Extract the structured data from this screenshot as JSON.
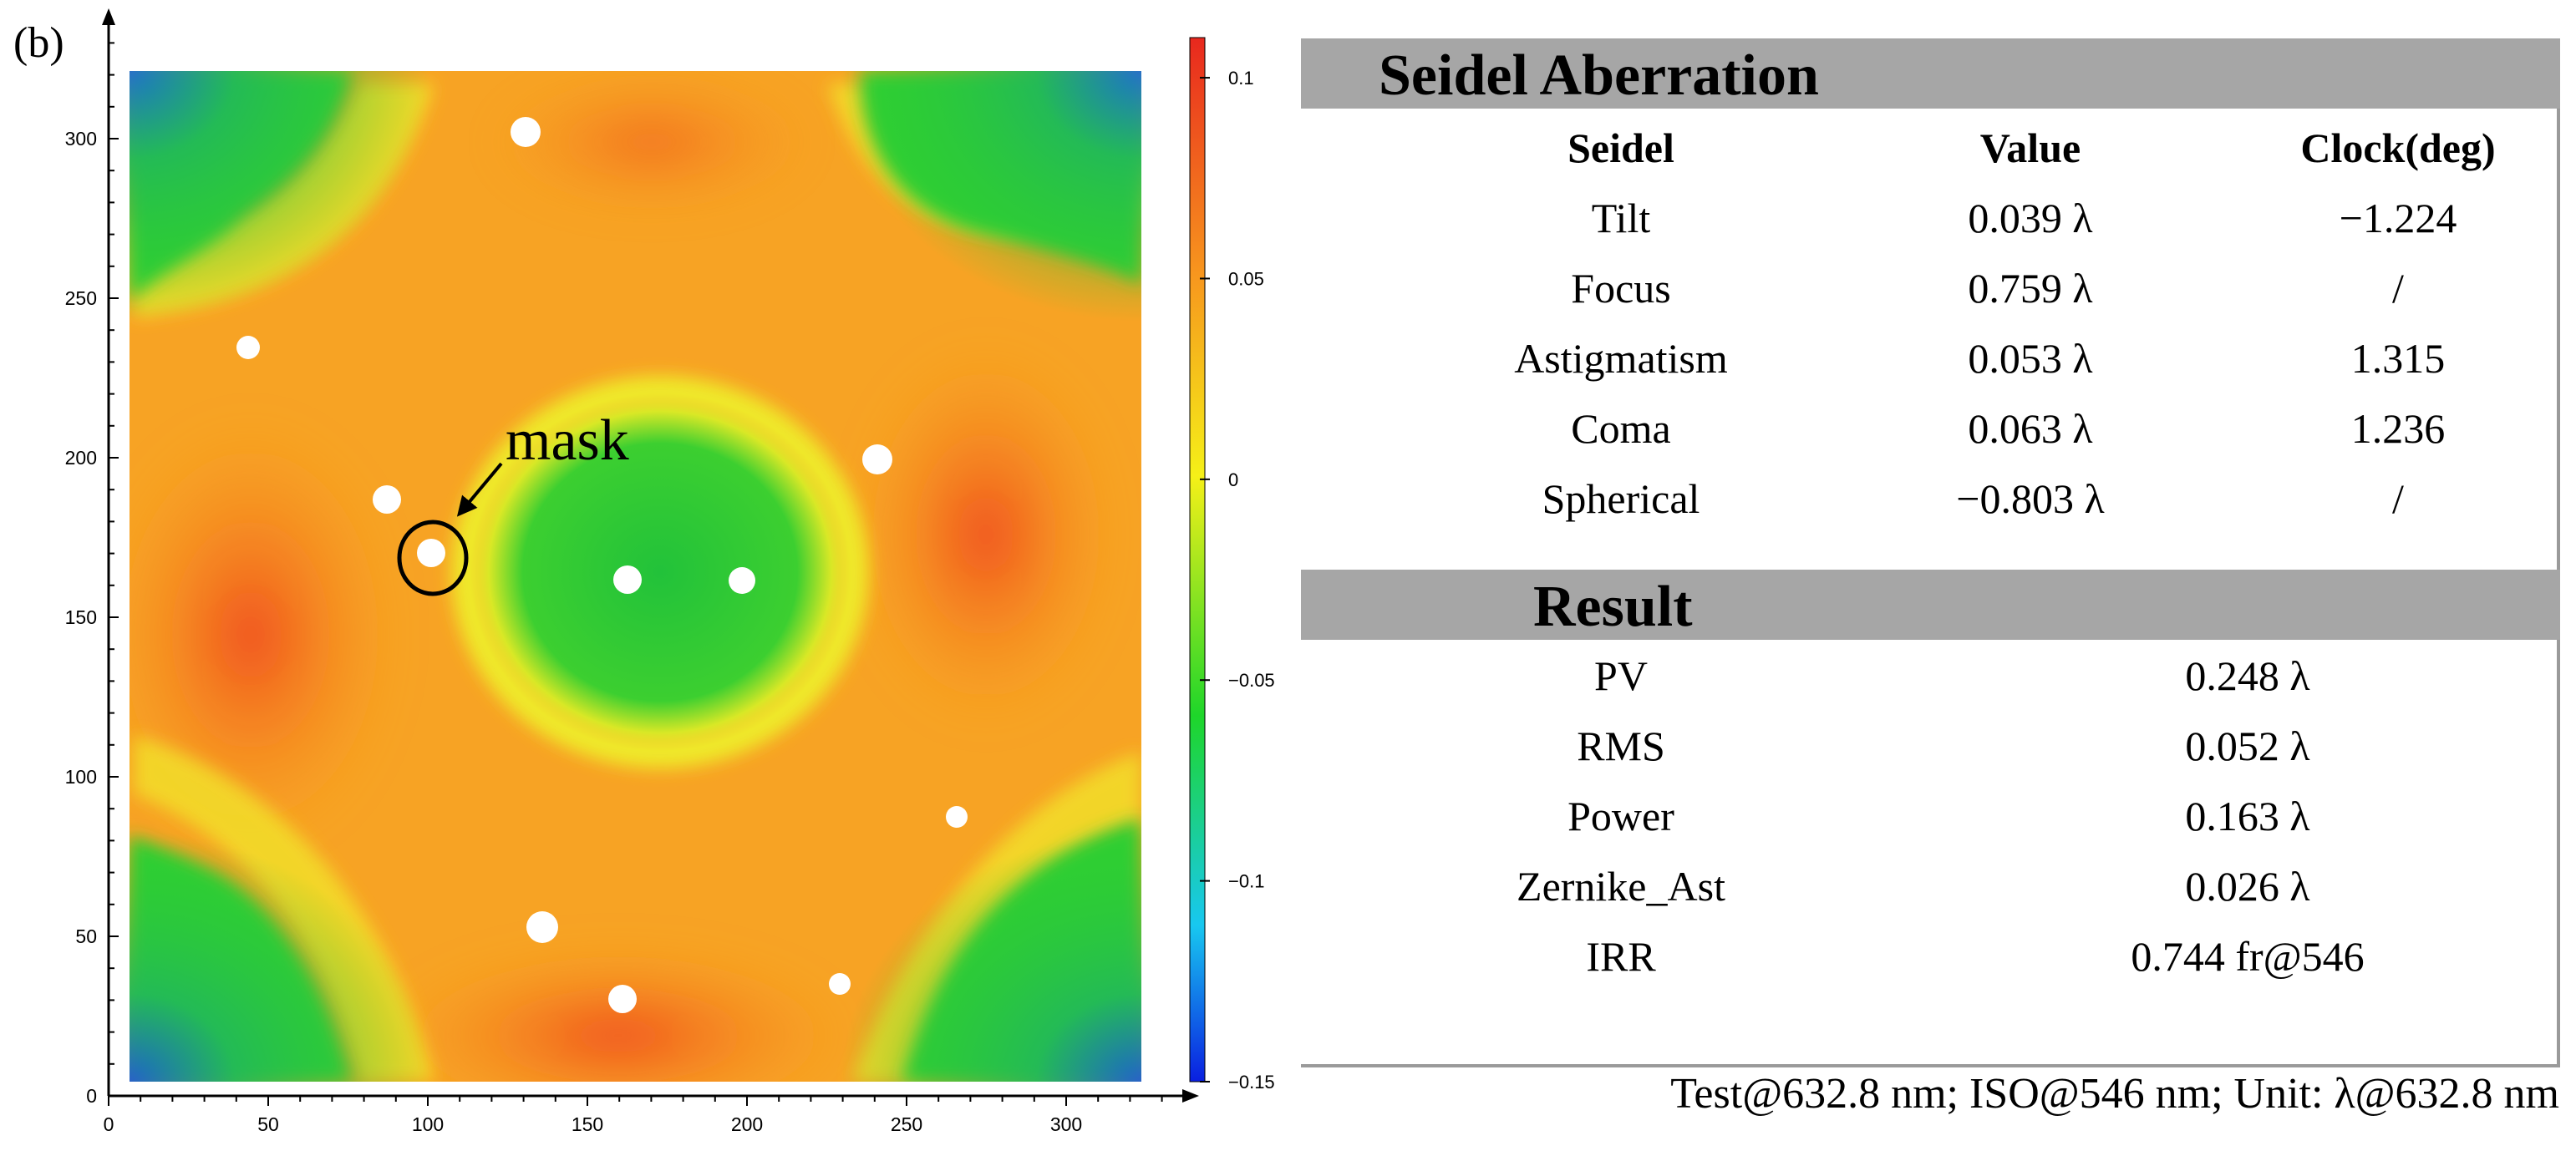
{
  "panel_label": "(b)",
  "chart_data": {
    "type": "heatmap",
    "title": "",
    "xlabel": "",
    "ylabel": "",
    "xlim": [
      0,
      340
    ],
    "ylim": [
      0,
      340
    ],
    "x_ticks": [
      0,
      50,
      100,
      150,
      200,
      250,
      300
    ],
    "y_ticks": [
      0,
      50,
      100,
      150,
      200,
      250,
      300
    ],
    "colorbar": {
      "range": [
        -0.15,
        0.11
      ],
      "tick_values": [
        0.1,
        0.05,
        0,
        -0.05,
        -0.1,
        -0.15
      ],
      "tick_labels": [
        "0.1",
        "0.05",
        "0",
        "−0.05",
        "−0.1",
        "−0.15"
      ],
      "colors": [
        "#0a1fe0",
        "#18c8f0",
        "#1ed62a",
        "#f5f018",
        "#f7931e",
        "#e8281e"
      ]
    },
    "annotations": [
      {
        "text": "mask"
      }
    ]
  },
  "seidel": {
    "title": "Seidel Aberration",
    "headers": [
      "Seidel",
      "Value",
      "Clock(deg)"
    ],
    "rows": [
      [
        "Tilt",
        "0.039 λ",
        "−1.224"
      ],
      [
        "Focus",
        "0.759 λ",
        "/"
      ],
      [
        "Astigmatism",
        "0.053 λ",
        "1.315"
      ],
      [
        "Coma",
        "0.063 λ",
        "1.236"
      ],
      [
        "Spherical",
        "−0.803 λ",
        "/"
      ]
    ]
  },
  "result": {
    "title": "Result",
    "rows": [
      [
        "PV",
        "0.248 λ"
      ],
      [
        "RMS",
        "0.052 λ"
      ],
      [
        "Power",
        "0.163 λ"
      ],
      [
        "Zernike_Ast",
        "0.026 λ"
      ],
      [
        "IRR",
        "0.744 fr@546"
      ]
    ]
  },
  "footer": "Test@632.8 nm; ISO@546 nm; Unit: λ@632.8 nm",
  "colors": {
    "band": "#a6a6a6",
    "frame": "#9a9a9a"
  }
}
